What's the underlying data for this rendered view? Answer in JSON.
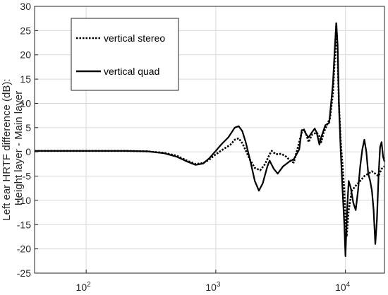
{
  "chart_data": {
    "type": "line",
    "title": "",
    "xlabel": "",
    "ylabel_lines": [
      "Left ear HRTF difference (dB):",
      "Height layer - Main layer"
    ],
    "x_scale": "log",
    "xlim": [
      40,
      20000
    ],
    "ylim": [
      -25,
      30
    ],
    "grid": true,
    "legend_position": "top-left",
    "x_ticks": [
      {
        "value": 100,
        "base": "10",
        "exp": "2"
      },
      {
        "value": 1000,
        "base": "10",
        "exp": "3"
      },
      {
        "value": 10000,
        "base": "10",
        "exp": "4"
      }
    ],
    "y_ticks": [
      "-25",
      "-20",
      "-15",
      "-10",
      "-5",
      "0",
      "5",
      "10",
      "15",
      "20",
      "25",
      "30"
    ],
    "series": [
      {
        "name": "vertical stereo",
        "style": "dotted",
        "points": [
          [
            40,
            0.2
          ],
          [
            100,
            0.2
          ],
          [
            200,
            0.2
          ],
          [
            300,
            0.1
          ],
          [
            400,
            -0.2
          ],
          [
            500,
            -0.8
          ],
          [
            600,
            -1.8
          ],
          [
            700,
            -2.5
          ],
          [
            800,
            -2.3
          ],
          [
            900,
            -1.5
          ],
          [
            1000,
            -0.5
          ],
          [
            1150,
            0.6
          ],
          [
            1300,
            1.5
          ],
          [
            1400,
            2.5
          ],
          [
            1500,
            2.8
          ],
          [
            1600,
            1.8
          ],
          [
            1700,
            0.3
          ],
          [
            1850,
            -1.8
          ],
          [
            2000,
            -3.3
          ],
          [
            2200,
            -3.8
          ],
          [
            2400,
            -2.5
          ],
          [
            2600,
            -0.5
          ],
          [
            2700,
            0.2
          ],
          [
            2900,
            -0.5
          ],
          [
            3200,
            -0.4
          ],
          [
            3500,
            -1.0
          ],
          [
            3800,
            -2.0
          ],
          [
            4000,
            -2.2
          ],
          [
            4200,
            0.0
          ],
          [
            4400,
            2.0
          ],
          [
            4600,
            4.0
          ],
          [
            4800,
            4.6
          ],
          [
            5000,
            3.5
          ],
          [
            5200,
            2.0
          ],
          [
            5500,
            3.5
          ],
          [
            6000,
            4.0
          ],
          [
            6300,
            3.2
          ],
          [
            6500,
            2.0
          ],
          [
            6800,
            4.0
          ],
          [
            7200,
            5.5
          ],
          [
            7600,
            7.0
          ],
          [
            8000,
            12.0
          ],
          [
            8300,
            20.0
          ],
          [
            8500,
            26.5
          ],
          [
            8700,
            20.0
          ],
          [
            8900,
            10.0
          ],
          [
            9200,
            2.0
          ],
          [
            9500,
            -3.0
          ],
          [
            9800,
            -8.0
          ],
          [
            10000,
            -14.0
          ],
          [
            10200,
            -17.5
          ],
          [
            10600,
            -12.0
          ],
          [
            11200,
            -8.0
          ],
          [
            12000,
            -7.0
          ],
          [
            13000,
            -6.0
          ],
          [
            14000,
            -5.0
          ],
          [
            15000,
            -4.5
          ],
          [
            16000,
            -4.0
          ],
          [
            17000,
            -4.5
          ],
          [
            18000,
            -5.0
          ],
          [
            19000,
            -3.5
          ],
          [
            20000,
            -3.0
          ]
        ]
      },
      {
        "name": "vertical quad",
        "style": "solid",
        "points": [
          [
            40,
            0.2
          ],
          [
            100,
            0.2
          ],
          [
            200,
            0.2
          ],
          [
            300,
            0.1
          ],
          [
            400,
            -0.3
          ],
          [
            500,
            -1.0
          ],
          [
            600,
            -2.0
          ],
          [
            700,
            -2.7
          ],
          [
            800,
            -2.4
          ],
          [
            900,
            -1.2
          ],
          [
            1000,
            0.2
          ],
          [
            1100,
            1.5
          ],
          [
            1250,
            3.0
          ],
          [
            1400,
            5.0
          ],
          [
            1500,
            5.3
          ],
          [
            1600,
            4.3
          ],
          [
            1700,
            2.0
          ],
          [
            1850,
            -2.0
          ],
          [
            2000,
            -6.0
          ],
          [
            2150,
            -8.0
          ],
          [
            2300,
            -6.5
          ],
          [
            2500,
            -3.0
          ],
          [
            2600,
            -1.8
          ],
          [
            2800,
            -3.5
          ],
          [
            3000,
            -4.5
          ],
          [
            3300,
            -3.0
          ],
          [
            3700,
            -2.0
          ],
          [
            4000,
            -1.5
          ],
          [
            4200,
            -0.5
          ],
          [
            4400,
            0.5
          ],
          [
            4600,
            4.5
          ],
          [
            4800,
            4.5
          ],
          [
            5000,
            3.5
          ],
          [
            5200,
            3.0
          ],
          [
            5500,
            4.0
          ],
          [
            5800,
            4.8
          ],
          [
            6000,
            4.0
          ],
          [
            6300,
            1.5
          ],
          [
            6500,
            3.0
          ],
          [
            7000,
            5.5
          ],
          [
            7500,
            6.0
          ],
          [
            8000,
            14.0
          ],
          [
            8300,
            22.0
          ],
          [
            8500,
            26.5
          ],
          [
            8700,
            22.0
          ],
          [
            8900,
            10.0
          ],
          [
            9200,
            0.0
          ],
          [
            9500,
            -8.0
          ],
          [
            9800,
            -15.0
          ],
          [
            10000,
            -21.5
          ],
          [
            10300,
            -12.0
          ],
          [
            10600,
            -6.0
          ],
          [
            11000,
            -7.5
          ],
          [
            11500,
            -10.5
          ],
          [
            12000,
            -12.0
          ],
          [
            12500,
            -8.0
          ],
          [
            13000,
            -3.0
          ],
          [
            13500,
            0.5
          ],
          [
            14000,
            2.5
          ],
          [
            14500,
            0.0
          ],
          [
            15000,
            -4.5
          ],
          [
            15500,
            -6.0
          ],
          [
            16000,
            -8.0
          ],
          [
            16500,
            -12.0
          ],
          [
            17000,
            -19.0
          ],
          [
            17500,
            -14.0
          ],
          [
            18000,
            -5.0
          ],
          [
            18500,
            1.0
          ],
          [
            19000,
            2.0
          ],
          [
            19500,
            -1.0
          ],
          [
            20000,
            -2.0
          ]
        ]
      }
    ]
  }
}
